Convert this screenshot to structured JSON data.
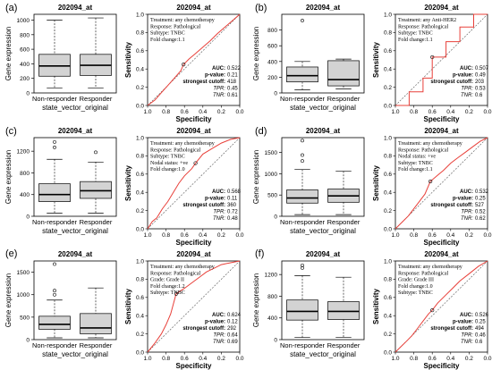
{
  "figure": {
    "panels": [
      {
        "letter": "(a)",
        "box": {
          "title": "202094_at",
          "ylabel": "Gene expression",
          "xlabel": "state_vector_original",
          "categories": [
            "Non-responder",
            "Responder"
          ],
          "yticks": [
            0,
            200,
            400,
            600,
            800,
            1000
          ],
          "ylim": [
            0,
            1080
          ],
          "groups": [
            {
              "min": 70,
              "q1": 230,
              "median": 370,
              "q3": 530,
              "max": 1000,
              "outliers": []
            },
            {
              "min": 70,
              "q1": 240,
              "median": 380,
              "q3": 530,
              "max": 1030,
              "outliers": []
            }
          ]
        },
        "roc": {
          "title": "202094_at",
          "ylabel": "Sensitivity",
          "xlabel": "Specificity",
          "info": [
            "Treatment: any chemotherapy",
            "Response: Pathological",
            "Subtype: TNBC",
            "Fold change:1.1"
          ],
          "stat_labels": [
            "AUC:",
            "p-value:",
            "strongest cutoff:",
            "TPR:",
            "TNR:"
          ],
          "stat_values": [
            "0.522",
            "0.21",
            "418",
            "0.45",
            "0.61"
          ],
          "curve": [
            [
              1,
              0
            ],
            [
              0.92,
              0.06
            ],
            [
              0.85,
              0.14
            ],
            [
              0.78,
              0.22
            ],
            [
              0.71,
              0.3
            ],
            [
              0.64,
              0.38
            ],
            [
              0.61,
              0.45
            ],
            [
              0.55,
              0.51
            ],
            [
              0.48,
              0.57
            ],
            [
              0.4,
              0.64
            ],
            [
              0.32,
              0.71
            ],
            [
              0.24,
              0.79
            ],
            [
              0.16,
              0.86
            ],
            [
              0.08,
              0.93
            ],
            [
              0,
              1
            ]
          ],
          "cutoff_point": [
            0.61,
            0.45
          ]
        }
      },
      {
        "letter": "(b)",
        "box": {
          "title": "202094_at",
          "ylabel": "Gene expression",
          "xlabel": "state_vector_original",
          "categories": [
            "Non-responder",
            "Responder"
          ],
          "yticks": [
            0,
            200,
            400,
            600,
            800
          ],
          "ylim": [
            0,
            1000
          ],
          "groups": [
            {
              "min": 40,
              "q1": 140,
              "median": 220,
              "q3": 330,
              "max": 400,
              "outliers": [
                920
              ]
            },
            {
              "min": 50,
              "q1": 90,
              "median": 170,
              "q3": 410,
              "max": 430,
              "outliers": []
            }
          ]
        },
        "roc": {
          "title": "202094_at",
          "ylabel": "Sensitivity",
          "xlabel": "Specificity",
          "info": [
            "Treatment: any Anti-HER2",
            "Response: Pathological",
            "Subtype: TNBC",
            "Fold change:1.1"
          ],
          "stat_labels": [
            "AUC:",
            "p-value:",
            "strongest cutoff:",
            "TPR:",
            "TNR:"
          ],
          "stat_values": [
            "0.507",
            "0.49",
            "203",
            "0.53",
            "0.6"
          ],
          "curve": [
            [
              1,
              0
            ],
            [
              0.85,
              0
            ],
            [
              0.85,
              0.15
            ],
            [
              0.7,
              0.15
            ],
            [
              0.7,
              0.3
            ],
            [
              0.6,
              0.3
            ],
            [
              0.6,
              0.53
            ],
            [
              0.45,
              0.53
            ],
            [
              0.45,
              0.7
            ],
            [
              0.3,
              0.7
            ],
            [
              0.3,
              0.86
            ],
            [
              0.15,
              0.86
            ],
            [
              0.15,
              1
            ],
            [
              0,
              1
            ]
          ],
          "cutoff_point": [
            0.6,
            0.53
          ]
        }
      },
      {
        "letter": "(c)",
        "box": {
          "title": "202094_at",
          "ylabel": "Gene expression",
          "xlabel": "state_vector_original",
          "categories": [
            "Non-responder",
            "Responder"
          ],
          "yticks": [
            0,
            400,
            800,
            1200
          ],
          "ylim": [
            0,
            1450
          ],
          "groups": [
            {
              "min": 60,
              "q1": 270,
              "median": 400,
              "q3": 600,
              "max": 1050,
              "outliers": [
                1270,
                1370
              ]
            },
            {
              "min": 60,
              "q1": 330,
              "median": 470,
              "q3": 640,
              "max": 1000,
              "outliers": [
                1180
              ]
            }
          ]
        },
        "roc": {
          "title": "202094_at",
          "ylabel": "Sensitivity",
          "xlabel": "Specificity",
          "info": [
            "Treatment: any chemotherapy",
            "Response: Pathological",
            "Subtype: TNBC",
            "Nodal status: +ve",
            "Fold change:1.0"
          ],
          "stat_labels": [
            "AUC:",
            "p-value:",
            "strongest cutoff:",
            "TPR:",
            "TNR:"
          ],
          "stat_values": [
            "0.568",
            "0.11",
            "360",
            "0.72",
            "0.48"
          ],
          "curve": [
            [
              1,
              0
            ],
            [
              0.95,
              0.08
            ],
            [
              0.9,
              0.12
            ],
            [
              0.84,
              0.22
            ],
            [
              0.78,
              0.3
            ],
            [
              0.72,
              0.4
            ],
            [
              0.66,
              0.5
            ],
            [
              0.6,
              0.58
            ],
            [
              0.52,
              0.66
            ],
            [
              0.48,
              0.72
            ],
            [
              0.4,
              0.82
            ],
            [
              0.3,
              0.88
            ],
            [
              0.2,
              0.94
            ],
            [
              0.1,
              0.98
            ],
            [
              0,
              1
            ]
          ],
          "cutoff_point": [
            0.48,
            0.72
          ]
        }
      },
      {
        "letter": "(d)",
        "box": {
          "title": "202094_at",
          "ylabel": "Gene expression",
          "xlabel": "state_vector_original",
          "categories": [
            "Non-responder",
            "Responder"
          ],
          "yticks": [
            0,
            500,
            1000,
            1500
          ],
          "ylim": [
            0,
            1850
          ],
          "groups": [
            {
              "min": 40,
              "q1": 310,
              "median": 430,
              "q3": 620,
              "max": 1100,
              "outliers": [
                1300,
                1440,
                1780
              ]
            },
            {
              "min": 40,
              "q1": 330,
              "median": 480,
              "q3": 640,
              "max": 1060,
              "outliers": []
            }
          ]
        },
        "roc": {
          "title": "202094_at",
          "ylabel": "Sensitivity",
          "xlabel": "Specificity",
          "info": [
            "Treatment: any chemotherapy",
            "Response: Pathological",
            "Nodal status: +ve",
            "Subtype: TNBC",
            "Fold change:1.1"
          ],
          "stat_labels": [
            "AUC:",
            "p-value:",
            "strongest cutoff:",
            "TPR:",
            "TNR:"
          ],
          "stat_values": [
            "0.532",
            "0.25",
            "527",
            "0.52",
            "0.62"
          ],
          "curve": [
            [
              1,
              0
            ],
            [
              0.93,
              0.07
            ],
            [
              0.86,
              0.14
            ],
            [
              0.8,
              0.22
            ],
            [
              0.74,
              0.3
            ],
            [
              0.68,
              0.38
            ],
            [
              0.62,
              0.52
            ],
            [
              0.55,
              0.58
            ],
            [
              0.48,
              0.64
            ],
            [
              0.4,
              0.72
            ],
            [
              0.32,
              0.78
            ],
            [
              0.24,
              0.84
            ],
            [
              0.16,
              0.9
            ],
            [
              0.08,
              0.96
            ],
            [
              0,
              1
            ]
          ],
          "cutoff_point": [
            0.62,
            0.52
          ]
        }
      },
      {
        "letter": "(e)",
        "box": {
          "title": "202094_at",
          "ylabel": "Gene expression",
          "xlabel": "state_vector_original",
          "categories": [
            "Non-responder",
            "Responder"
          ],
          "yticks": [
            0,
            500,
            1000,
            1500
          ],
          "ylim": [
            0,
            1750
          ],
          "groups": [
            {
              "min": 40,
              "q1": 230,
              "median": 340,
              "q3": 520,
              "max": 880,
              "outliers": [
                1000,
                1090,
                1680
              ]
            },
            {
              "min": 40,
              "q1": 130,
              "median": 260,
              "q3": 580,
              "max": 1150,
              "outliers": []
            }
          ]
        },
        "roc": {
          "title": "202094_at",
          "ylabel": "Sensitivity",
          "xlabel": "Specificity",
          "info": [
            "Treatment: any chemotherapy",
            "Response: Pathological",
            "Grade: Grade II",
            "Fold change:1.2",
            "Subtype: TNBC"
          ],
          "stat_labels": [
            "AUC:",
            "p-value:",
            "strongest cutoff:",
            "TPR:",
            "TNR:"
          ],
          "stat_values": [
            "0.624",
            "0.12",
            "292",
            "0.64",
            "0.69"
          ],
          "curve": [
            [
              1,
              0
            ],
            [
              0.92,
              0.1
            ],
            [
              0.85,
              0.2
            ],
            [
              0.8,
              0.3
            ],
            [
              0.75,
              0.42
            ],
            [
              0.69,
              0.64
            ],
            [
              0.6,
              0.7
            ],
            [
              0.52,
              0.76
            ],
            [
              0.44,
              0.82
            ],
            [
              0.36,
              0.88
            ],
            [
              0.28,
              0.92
            ],
            [
              0.2,
              0.96
            ],
            [
              0.1,
              0.98
            ],
            [
              0,
              1
            ]
          ],
          "cutoff_point": [
            0.69,
            0.64
          ]
        }
      },
      {
        "letter": "(f)",
        "box": {
          "title": "202094_at",
          "ylabel": "Gene expression",
          "xlabel": "state_vector_original",
          "categories": [
            "Non-responder",
            "Responder"
          ],
          "yticks": [
            0,
            400,
            800,
            1200
          ],
          "ylim": [
            0,
            1450
          ],
          "groups": [
            {
              "min": 40,
              "q1": 360,
              "median": 520,
              "q3": 730,
              "max": 1180,
              "outliers": [
                1320,
                1370
              ]
            },
            {
              "min": 40,
              "q1": 370,
              "median": 520,
              "q3": 700,
              "max": 1150,
              "outliers": []
            }
          ]
        },
        "roc": {
          "title": "202094_at",
          "ylabel": "Sensitivity",
          "xlabel": "Specificity",
          "info": [
            "Treatment: any chemotherapy",
            "Response: Pathological",
            "Grade: Grade III",
            "Fold change:1.0",
            "Subtype: TNBC"
          ],
          "stat_labels": [
            "AUC:",
            "p-value:",
            "strongest cutoff:",
            "TPR:",
            "TNR:"
          ],
          "stat_values": [
            "0.526",
            "0.25",
            "494",
            "0.46",
            "0.6"
          ],
          "curve": [
            [
              1,
              0
            ],
            [
              0.94,
              0.06
            ],
            [
              0.88,
              0.12
            ],
            [
              0.82,
              0.18
            ],
            [
              0.76,
              0.26
            ],
            [
              0.7,
              0.34
            ],
            [
              0.64,
              0.42
            ],
            [
              0.6,
              0.46
            ],
            [
              0.54,
              0.54
            ],
            [
              0.46,
              0.62
            ],
            [
              0.38,
              0.7
            ],
            [
              0.3,
              0.78
            ],
            [
              0.2,
              0.86
            ],
            [
              0.1,
              0.94
            ],
            [
              0,
              1
            ]
          ],
          "cutoff_point": [
            0.6,
            0.46
          ]
        }
      }
    ],
    "roc_ticks": [
      "1.0",
      "0.8",
      "0.6",
      "0.4",
      "0.2",
      "0.0"
    ],
    "roc_yticks": [
      "0.0",
      "0.2",
      "0.4",
      "0.6",
      "0.8",
      "1.0"
    ],
    "colors": {
      "box_fill": "#d3d3d3",
      "roc_curve": "#e8403a",
      "diagonal": "#555555"
    }
  },
  "chart_data": [
    {
      "type": "box",
      "panel": "(a) left",
      "title": "202094_at",
      "ylabel": "Gene expression",
      "xlabel": "state_vector_original",
      "categories": [
        "Non-responder",
        "Responder"
      ],
      "medians": [
        370,
        380
      ],
      "ylim": [
        0,
        1080
      ]
    },
    {
      "type": "line",
      "panel": "(a) right",
      "title": "202094_at",
      "xlabel": "Specificity",
      "ylabel": "Sensitivity",
      "AUC": 0.522,
      "p_value": 0.21,
      "strongest_cutoff": 418,
      "TPR": 0.45,
      "TNR": 0.61
    },
    {
      "type": "box",
      "panel": "(b) left",
      "title": "202094_at",
      "ylabel": "Gene expression",
      "xlabel": "state_vector_original",
      "categories": [
        "Non-responder",
        "Responder"
      ],
      "medians": [
        220,
        170
      ],
      "ylim": [
        0,
        1000
      ]
    },
    {
      "type": "line",
      "panel": "(b) right",
      "title": "202094_at",
      "xlabel": "Specificity",
      "ylabel": "Sensitivity",
      "AUC": 0.507,
      "p_value": 0.49,
      "strongest_cutoff": 203,
      "TPR": 0.53,
      "TNR": 0.6
    },
    {
      "type": "box",
      "panel": "(c) left",
      "title": "202094_at",
      "ylabel": "Gene expression",
      "xlabel": "state_vector_original",
      "categories": [
        "Non-responder",
        "Responder"
      ],
      "medians": [
        400,
        470
      ],
      "ylim": [
        0,
        1450
      ]
    },
    {
      "type": "line",
      "panel": "(c) right",
      "title": "202094_at",
      "xlabel": "Specificity",
      "ylabel": "Sensitivity",
      "AUC": 0.568,
      "p_value": 0.11,
      "strongest_cutoff": 360,
      "TPR": 0.72,
      "TNR": 0.48
    },
    {
      "type": "box",
      "panel": "(d) left",
      "title": "202094_at",
      "ylabel": "Gene expression",
      "xlabel": "state_vector_original",
      "categories": [
        "Non-responder",
        "Responder"
      ],
      "medians": [
        430,
        480
      ],
      "ylim": [
        0,
        1850
      ]
    },
    {
      "type": "line",
      "panel": "(d) right",
      "title": "202094_at",
      "xlabel": "Specificity",
      "ylabel": "Sensitivity",
      "AUC": 0.532,
      "p_value": 0.25,
      "strongest_cutoff": 527,
      "TPR": 0.52,
      "TNR": 0.62
    },
    {
      "type": "box",
      "panel": "(e) left",
      "title": "202094_at",
      "ylabel": "Gene expression",
      "xlabel": "state_vector_original",
      "categories": [
        "Non-responder",
        "Responder"
      ],
      "medians": [
        340,
        260
      ],
      "ylim": [
        0,
        1750
      ]
    },
    {
      "type": "line",
      "panel": "(e) right",
      "title": "202094_at",
      "xlabel": "Specificity",
      "ylabel": "Sensitivity",
      "AUC": 0.624,
      "p_value": 0.12,
      "strongest_cutoff": 292,
      "TPR": 0.64,
      "TNR": 0.69
    },
    {
      "type": "box",
      "panel": "(f) left",
      "title": "202094_at",
      "ylabel": "Gene expression",
      "xlabel": "state_vector_original",
      "categories": [
        "Non-responder",
        "Responder"
      ],
      "medians": [
        520,
        520
      ],
      "ylim": [
        0,
        1450
      ]
    },
    {
      "type": "line",
      "panel": "(f) right",
      "title": "202094_at",
      "xlabel": "Specificity",
      "ylabel": "Sensitivity",
      "AUC": 0.526,
      "p_value": 0.25,
      "strongest_cutoff": 494,
      "TPR": 0.46,
      "TNR": 0.6
    }
  ]
}
